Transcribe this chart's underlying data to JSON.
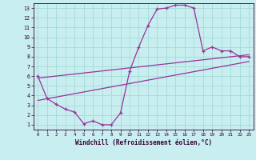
{
  "hours": [
    0,
    1,
    2,
    3,
    4,
    5,
    6,
    7,
    8,
    9,
    10,
    11,
    12,
    13,
    14,
    15,
    16,
    17,
    18,
    19,
    20,
    21,
    22,
    23
  ],
  "temp": [
    6.0,
    3.7,
    3.1,
    2.6,
    2.3,
    1.1,
    1.4,
    1.0,
    1.0,
    2.2,
    6.5,
    9.0,
    11.2,
    12.9,
    13.0,
    13.3,
    13.3,
    13.0,
    8.6,
    9.0,
    8.6,
    8.6,
    8.0,
    8.0
  ],
  "line1_x": [
    0,
    23
  ],
  "line1_y": [
    3.5,
    7.5
  ],
  "line2_x": [
    0,
    23
  ],
  "line2_y": [
    5.8,
    8.2
  ],
  "xlim": [
    -0.5,
    23.5
  ],
  "ylim": [
    0.5,
    13.5
  ],
  "yticks": [
    1,
    2,
    3,
    4,
    5,
    6,
    7,
    8,
    9,
    10,
    11,
    12,
    13
  ],
  "xticks": [
    0,
    1,
    2,
    3,
    4,
    5,
    6,
    7,
    8,
    9,
    10,
    11,
    12,
    13,
    14,
    15,
    16,
    17,
    18,
    19,
    20,
    21,
    22,
    23
  ],
  "xlabel": "Windchill (Refroidissement éolien,°C)",
  "bg_color": "#c8eef0",
  "grid_color": "#aadddd",
  "line_color": "#993399",
  "title": ""
}
